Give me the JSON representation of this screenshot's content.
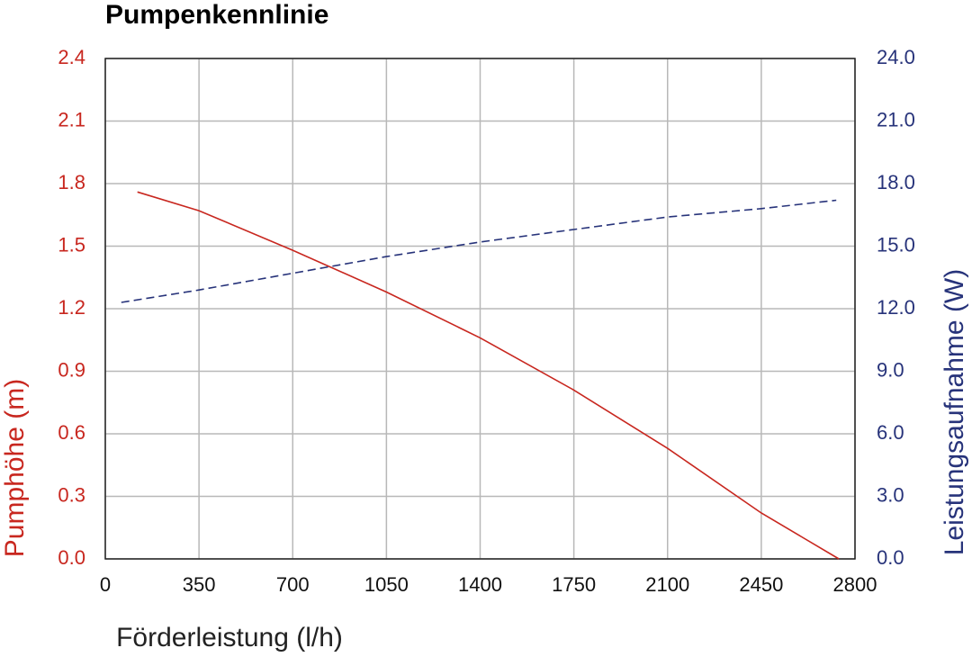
{
  "chart_data": {
    "type": "line",
    "title": "Pumpenkennlinie",
    "x_label": "Förderleistung (l/h)",
    "y_label": "Pumphöhe (m)",
    "y2_label": "Leistungsaufnahme (W)",
    "xlim": [
      0,
      2800
    ],
    "xticks": [
      0,
      350,
      700,
      1050,
      1400,
      1750,
      2100,
      2450,
      2800
    ],
    "ylim": [
      0,
      2.4
    ],
    "yticks": [
      {
        "value": 0,
        "label": "0.0"
      },
      0.3,
      0.6,
      0.9,
      1.2,
      1.5,
      1.8,
      2.1,
      2.4
    ],
    "y2lim": [
      0,
      24
    ],
    "y2ticks": [
      {
        "value": 0,
        "label": "0.0"
      },
      {
        "value": 3,
        "label": "3.0"
      },
      {
        "value": 6,
        "label": "6.0"
      },
      {
        "value": 9,
        "label": "9.0"
      },
      {
        "value": 12,
        "label": "12.0"
      },
      {
        "value": 15,
        "label": "15.0"
      },
      {
        "value": 18,
        "label": "18.0"
      },
      {
        "value": 21,
        "label": "21.0"
      },
      {
        "value": 24,
        "label": "24.0"
      }
    ],
    "y_color": "#c8271f",
    "y2_color": "#27337a",
    "grid": true,
    "series": [
      {
        "color": "#c8271f",
        "dash": false,
        "axis": "y",
        "x": [
          120,
          350,
          700,
          1050,
          1400,
          1750,
          2100,
          2450,
          2740
        ],
        "values": [
          1.76,
          1.67,
          1.48,
          1.28,
          1.06,
          0.81,
          0.53,
          0.22,
          0.0
        ]
      },
      {
        "color": "#27337a",
        "dash": true,
        "axis": "y2",
        "x": [
          60,
          350,
          700,
          1050,
          1400,
          1750,
          2100,
          2450,
          2730
        ],
        "values": [
          12.3,
          12.9,
          13.7,
          14.5,
          15.2,
          15.8,
          16.4,
          16.8,
          17.2
        ]
      }
    ]
  }
}
